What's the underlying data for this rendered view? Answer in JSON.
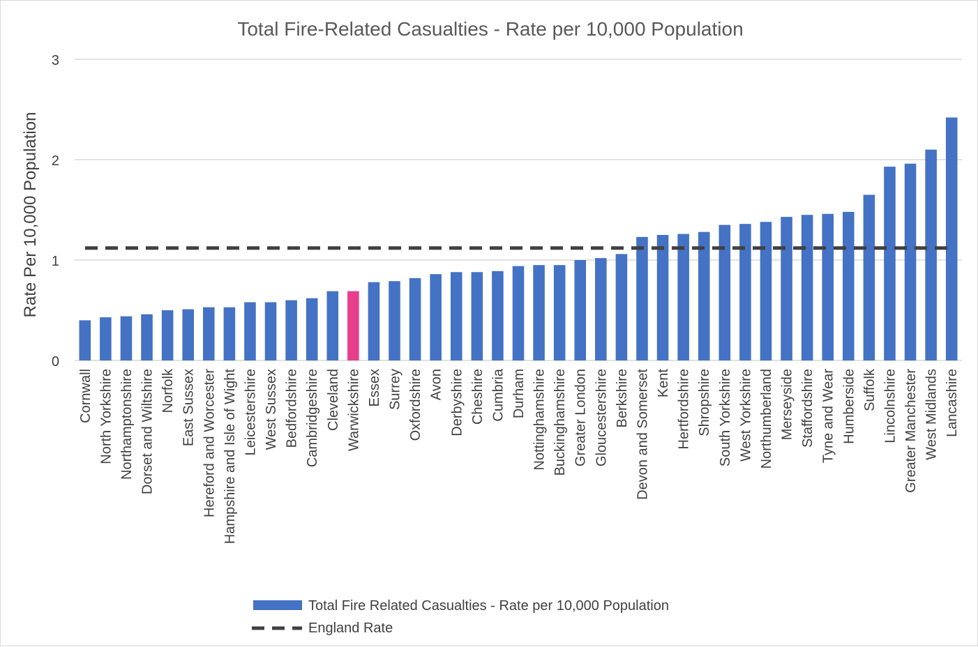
{
  "chart_data": {
    "type": "bar",
    "title": "Total Fire-Related Casualties - Rate per 10,000 Population",
    "xlabel": "",
    "ylabel": "Rate Per 10,000 Population",
    "ylim": [
      0,
      3
    ],
    "yticks": [
      "0",
      "1",
      "2",
      "3"
    ],
    "grid": true,
    "legend_position": "bottom",
    "categories": [
      "Cornwall",
      "North Yorkshire",
      "Northamptonshire",
      "Dorset and Wiltshire",
      "Norfolk",
      "East Sussex",
      "Hereford and Worcester",
      "Hampshire and Isle of Wight",
      "Leicestershire",
      "West Sussex",
      "Bedfordshire",
      "Cambridgeshire",
      "Cleveland",
      "Warwickshire",
      "Essex",
      "Surrey",
      "Oxfordshire",
      "Avon",
      "Derbyshire",
      "Cheshire",
      "Cumbria",
      "Durham",
      "Nottinghamshire",
      "Buckinghamshire",
      "Greater London",
      "Gloucestershire",
      "Berkshire",
      "Devon and Somerset",
      "Kent",
      "Hertfordshire",
      "Shropshire",
      "South Yorkshire",
      "West Yorkshire",
      "Northumberland",
      "Merseyside",
      "Staffordshire",
      "Tyne and Wear",
      "Humberside",
      "Suffolk",
      "Lincolnshire",
      "Greater Manchester",
      "West Midlands",
      "Lancashire"
    ],
    "series": [
      {
        "name": "Total Fire Related Casualties - Rate per 10,000 Population",
        "type": "bar",
        "color": "#4472c4",
        "highlight_color": "#e83e8c",
        "highlight_category": "Warwickshire",
        "values": [
          0.4,
          0.43,
          0.44,
          0.46,
          0.5,
          0.51,
          0.53,
          0.53,
          0.58,
          0.58,
          0.6,
          0.62,
          0.69,
          0.69,
          0.78,
          0.79,
          0.82,
          0.86,
          0.88,
          0.88,
          0.89,
          0.94,
          0.95,
          0.95,
          1.0,
          1.02,
          1.06,
          1.23,
          1.25,
          1.26,
          1.28,
          1.35,
          1.36,
          1.38,
          1.43,
          1.45,
          1.46,
          1.48,
          1.65,
          1.93,
          1.96,
          2.1,
          2.42
        ]
      },
      {
        "name": "England Rate",
        "type": "line",
        "style": "dashed",
        "color": "#404040",
        "value": 1.12
      }
    ]
  }
}
